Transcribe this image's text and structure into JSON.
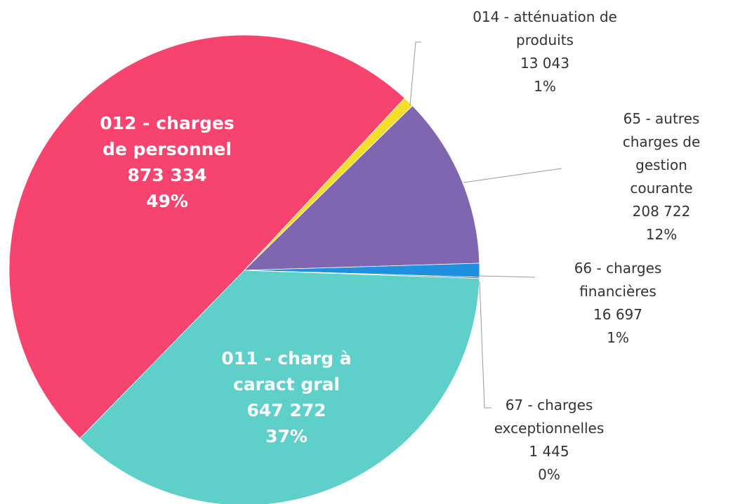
{
  "chart_data": {
    "type": "pie",
    "categories": [
      "011 - charg à\ncaract gral",
      "012 - charges\nde personnel",
      "014 - atténuation de\nproduits",
      "65 - autres\ncharges de gestion\ncourante",
      "66 - charges\nfinancières",
      "67 - charges\nexceptionnelles"
    ],
    "values": [
      647272,
      873334,
      13043,
      208722,
      16697,
      1445
    ],
    "value_labels": [
      "647 272",
      "873 334",
      "13 043",
      "208 722",
      "16 697",
      "1 445"
    ],
    "percent_labels": [
      "37%",
      "49%",
      "1%",
      "12%",
      "1%",
      "0%"
    ],
    "colors": [
      "#5ecfc9",
      "#f7446f",
      "#f2df2a",
      "#8066b0",
      "#1f8fe0",
      "#2f5db5"
    ]
  }
}
